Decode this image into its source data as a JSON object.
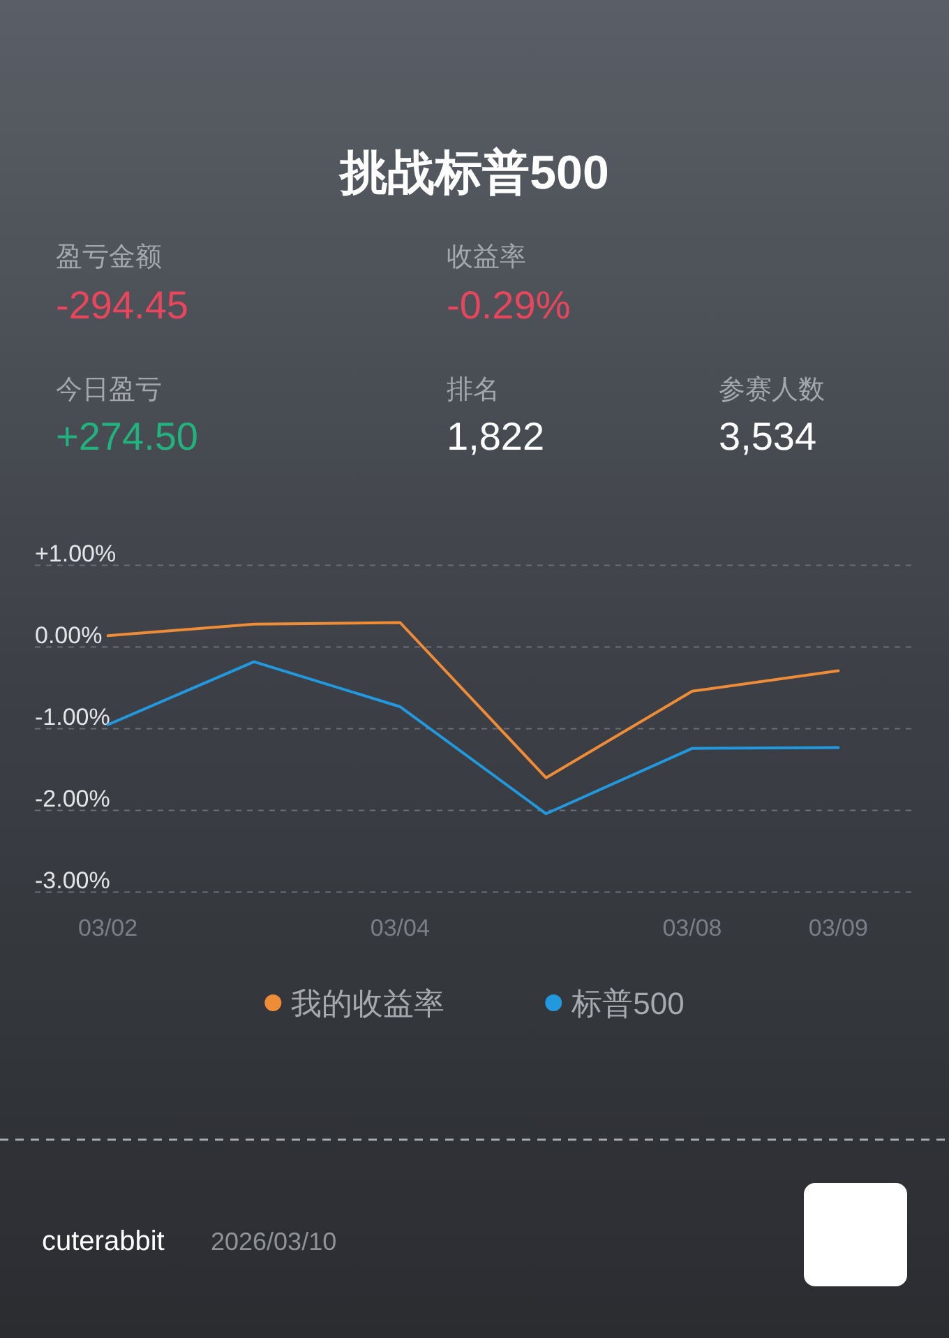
{
  "chart_data": [
    {
      "type": "other",
      "title": "挑战标普500",
      "annotations": [
        "盈亏金额",
        "-294.45",
        "收益率",
        "-0.29%",
        "今日盈亏",
        "+274.50",
        "排名",
        "1,822",
        "参赛人数",
        "3,534",
        "cuterabbit",
        "2026/03/10"
      ]
    },
    {
      "type": "line",
      "categories": [
        "03/02",
        null,
        "03/04",
        null,
        "03/08",
        "03/09"
      ],
      "series": [
        {
          "name": "我的收益率",
          "color": "#ef8c38",
          "values": [
            0.14,
            0.28,
            0.3,
            -1.6,
            -0.54,
            -0.29
          ]
        },
        {
          "name": "标普500",
          "color": "#2299de",
          "values": [
            -0.95,
            -0.18,
            -0.73,
            -2.04,
            -1.24,
            -1.23
          ]
        }
      ],
      "ylim": [
        -3,
        1
      ],
      "yticks": [
        {
          "value": 1,
          "label": "+1.00%"
        },
        {
          "value": 0,
          "label": "0.00%"
        },
        {
          "value": -1,
          "label": "-1.00%"
        },
        {
          "value": -2,
          "label": "-2.00%"
        },
        {
          "value": -3,
          "label": "-3.00%"
        }
      ],
      "grid": "y",
      "legend": "bottom",
      "line_style": "solid"
    }
  ]
}
